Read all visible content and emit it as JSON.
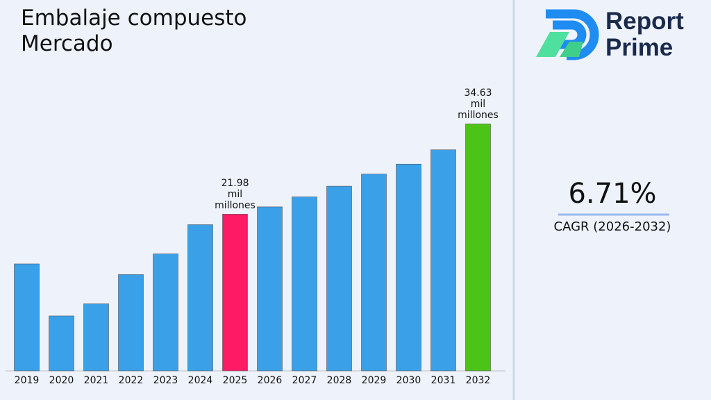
{
  "chart_data": {
    "type": "bar",
    "title": "Embalaje compuesto Mercado",
    "categories": [
      "2019",
      "2020",
      "2021",
      "2022",
      "2023",
      "2024",
      "2025",
      "2026",
      "2027",
      "2028",
      "2029",
      "2030",
      "2031",
      "2032"
    ],
    "values": [
      15.0,
      7.7,
      9.4,
      13.5,
      16.4,
      20.5,
      21.98,
      23.0,
      24.4,
      25.9,
      27.6,
      29.0,
      31.0,
      34.63
    ],
    "value_labels": [
      null,
      null,
      null,
      null,
      null,
      null,
      "21.98 mil millones",
      null,
      null,
      null,
      null,
      null,
      null,
      "34.63 mil millones"
    ],
    "colors": [
      "#3aa0e8",
      "#3aa0e8",
      "#3aa0e8",
      "#3aa0e8",
      "#3aa0e8",
      "#3aa0e8",
      "#ff1a66",
      "#3aa0e8",
      "#3aa0e8",
      "#3aa0e8",
      "#3aa0e8",
      "#3aa0e8",
      "#3aa0e8",
      "#4cc417"
    ],
    "ylim": [
      0,
      37.5
    ]
  },
  "side_panel": {
    "brand_line1": "Report",
    "brand_line2": "Prime",
    "cagr_value": "6.71%",
    "cagr_label": "CAGR (2026-2032)"
  }
}
